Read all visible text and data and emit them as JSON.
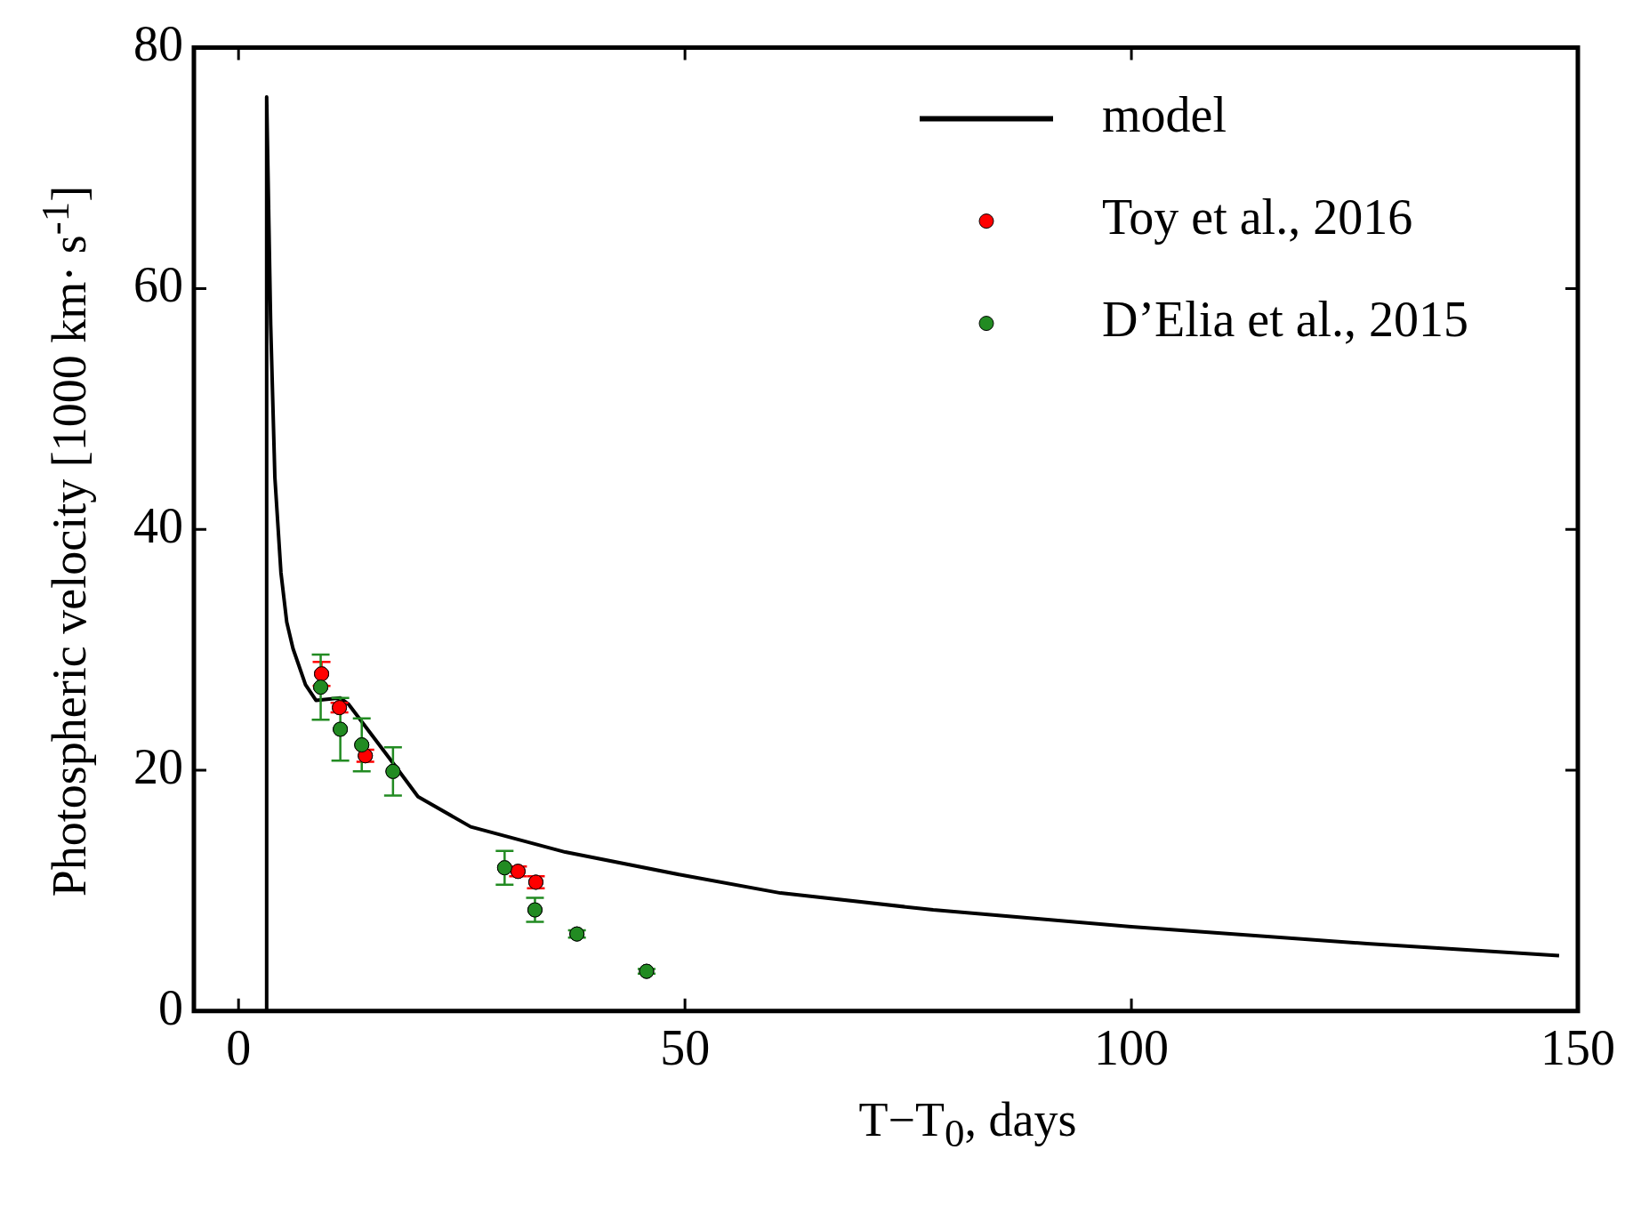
{
  "chart_data": {
    "type": "line",
    "xlabel": "T−T$_{0}$, days",
    "ylabel": "Photospheric velocity [1000 km· s$^{-1}$]",
    "xlim": [
      -5,
      150
    ],
    "xticks": [
      0,
      50,
      100,
      150
    ],
    "ylim": [
      0,
      80
    ],
    "yticks": [
      0,
      20,
      40,
      60,
      80
    ],
    "grid": false,
    "legend": "top right",
    "series": [
      {
        "name": "model",
        "color": "#000000",
        "marker": "none",
        "line_style": "solid",
        "x": [
          3.15,
          3.15,
          3.6,
          4.07,
          4.75,
          5.4,
          6.1,
          7.5,
          8.67,
          11.4,
          12.3,
          17.4,
          20.1,
          26.0,
          36.6,
          49.6,
          60.7,
          77.8,
          100,
          126.4,
          147.9
        ],
        "values": [
          0,
          75.9,
          57.0,
          44.3,
          36.4,
          32.3,
          30.1,
          27.1,
          25.8,
          26.0,
          25.5,
          20.5,
          17.8,
          15.3,
          13.2,
          11.3,
          9.8,
          8.4,
          7.0,
          5.6,
          4.6
        ]
      },
      {
        "name": "Toy et al., 2016",
        "type": "scatter",
        "color": "#ff0000",
        "marker": "circle",
        "x": [
          9.3,
          11.3,
          14.2,
          31.3,
          33.3
        ],
        "values": [
          28.0,
          25.2,
          21.2,
          11.6,
          10.7
        ],
        "errors": [
          1,
          0.4,
          0.5,
          0.4,
          0.5
        ]
      },
      {
        "name": "D’Elia et al., 2015",
        "type": "scatter",
        "color": "#228b22",
        "marker": "circle",
        "x": [
          9.2,
          11.4,
          13.8,
          17.3,
          29.8,
          33.2,
          37.9,
          45.7
        ],
        "values": [
          26.9,
          23.4,
          22.1,
          19.9,
          11.9,
          8.4,
          6.4,
          3.3
        ],
        "errors": [
          2.7,
          2.6,
          2.2,
          2,
          1.4,
          1,
          0.3,
          0.2
        ]
      }
    ]
  }
}
